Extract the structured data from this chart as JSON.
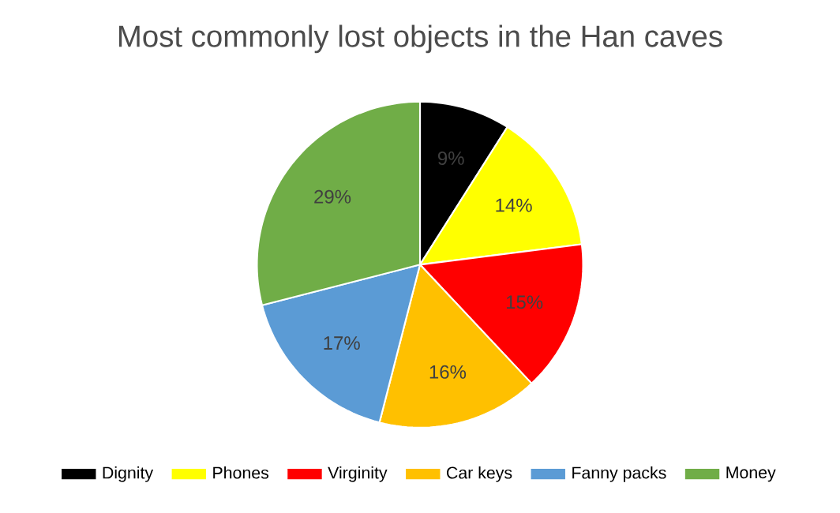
{
  "chart_data": {
    "type": "pie",
    "title": "Most commonly lost objects in the Han caves",
    "categories": [
      "Dignity",
      "Phones",
      "Virginity",
      "Car keys",
      "Fanny packs",
      "Money"
    ],
    "values": [
      9,
      14,
      15,
      16,
      17,
      29
    ],
    "value_labels": [
      "9%",
      "14%",
      "15%",
      "16%",
      "17%",
      "29%"
    ],
    "colors": [
      "#000000",
      "#ffff00",
      "#ff0000",
      "#ffc000",
      "#5b9bd5",
      "#70ad47"
    ],
    "legend": "bottom"
  }
}
